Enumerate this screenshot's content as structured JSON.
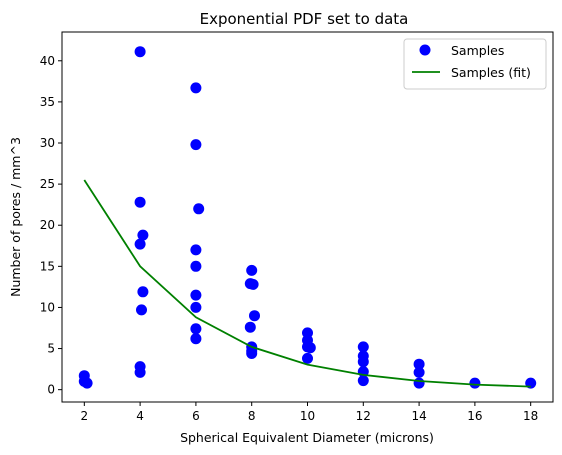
{
  "chart_data": {
    "type": "scatter",
    "title": "Exponential PDF set to data",
    "xlabel": "Spherical Equivalent Diameter (microns)",
    "ylabel": "Number of pores / mm^3",
    "xlim": [
      1.2,
      18.8
    ],
    "ylim": [
      -1.5,
      43.5
    ],
    "xticks": [
      2,
      4,
      6,
      8,
      10,
      12,
      14,
      16,
      18
    ],
    "yticks": [
      0,
      5,
      10,
      15,
      20,
      25,
      30,
      35,
      40
    ],
    "grid": false,
    "legend_position": "top-right",
    "series": [
      {
        "name": "Samples",
        "kind": "scatter",
        "color": "#0000ff",
        "points": [
          [
            2.0,
            1.7
          ],
          [
            2.0,
            1.0
          ],
          [
            2.1,
            0.8
          ],
          [
            4.0,
            41.1
          ],
          [
            4.0,
            22.8
          ],
          [
            4.1,
            18.8
          ],
          [
            4.0,
            17.7
          ],
          [
            4.1,
            11.9
          ],
          [
            4.05,
            9.7
          ],
          [
            4.0,
            2.8
          ],
          [
            4.0,
            2.1
          ],
          [
            6.0,
            36.7
          ],
          [
            6.0,
            29.8
          ],
          [
            6.1,
            22.0
          ],
          [
            6.0,
            17.0
          ],
          [
            6.0,
            15.0
          ],
          [
            6.0,
            11.5
          ],
          [
            6.0,
            10.0
          ],
          [
            6.0,
            7.4
          ],
          [
            6.0,
            6.2
          ],
          [
            8.0,
            14.5
          ],
          [
            7.95,
            12.9
          ],
          [
            8.05,
            12.8
          ],
          [
            8.1,
            9.0
          ],
          [
            7.95,
            7.6
          ],
          [
            8.0,
            5.2
          ],
          [
            8.0,
            4.7
          ],
          [
            8.0,
            4.4
          ],
          [
            10.0,
            6.9
          ],
          [
            10.0,
            6.0
          ],
          [
            10.0,
            5.2
          ],
          [
            10.1,
            5.1
          ],
          [
            10.0,
            3.8
          ],
          [
            12.0,
            5.2
          ],
          [
            12.0,
            4.1
          ],
          [
            12.0,
            3.4
          ],
          [
            12.0,
            2.2
          ],
          [
            12.0,
            1.1
          ],
          [
            14.0,
            3.1
          ],
          [
            14.0,
            2.1
          ],
          [
            14.0,
            0.8
          ],
          [
            16.0,
            0.8
          ],
          [
            18.0,
            0.8
          ]
        ]
      },
      {
        "name": "Samples (fit)",
        "kind": "line",
        "color": "#008000",
        "x": [
          2,
          4,
          6,
          8,
          10,
          12,
          14,
          16,
          18
        ],
        "y": [
          25.5,
          15.0,
          8.8,
          5.2,
          3.05,
          1.8,
          1.05,
          0.62,
          0.37
        ]
      }
    ]
  }
}
